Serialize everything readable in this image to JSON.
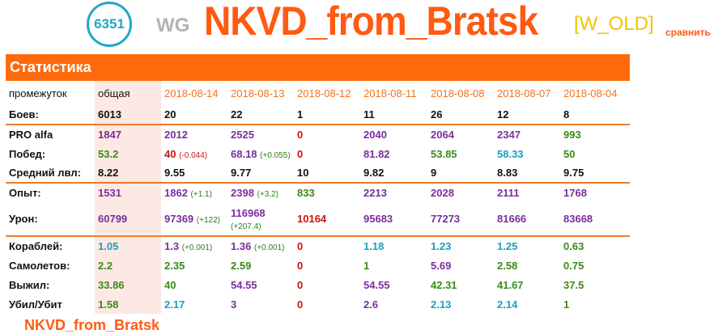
{
  "header": {
    "rating": "6351",
    "clan": "WG",
    "nickname": "NKVD_from_Bratsk",
    "tag": "[W_OLD]",
    "compare": "сравнить"
  },
  "stats": {
    "title": "Статистика",
    "period_label": "промежуток",
    "periods": [
      "общая",
      "2018-08-14",
      "2018-08-13",
      "2018-08-12",
      "2018-08-11",
      "2018-08-08",
      "2018-08-07",
      "2018-08-04"
    ],
    "rows": [
      {
        "label": "Боев:",
        "sep": false,
        "cells": [
          {
            "v": "6013",
            "c": "black"
          },
          {
            "v": "20",
            "c": "black"
          },
          {
            "v": "22",
            "c": "black"
          },
          {
            "v": "1",
            "c": "black"
          },
          {
            "v": "11",
            "c": "black"
          },
          {
            "v": "26",
            "c": "black"
          },
          {
            "v": "12",
            "c": "black"
          },
          {
            "v": "8",
            "c": "black"
          }
        ]
      },
      {
        "label": "PRO alfa",
        "sep": true,
        "cells": [
          {
            "v": "1847",
            "c": "purple"
          },
          {
            "v": "2012",
            "c": "purple"
          },
          {
            "v": "2525",
            "c": "purple"
          },
          {
            "v": "0",
            "c": "red"
          },
          {
            "v": "2040",
            "c": "purple"
          },
          {
            "v": "2064",
            "c": "purple"
          },
          {
            "v": "2347",
            "c": "purple"
          },
          {
            "v": "993",
            "c": "green"
          }
        ]
      },
      {
        "label": "Побед:",
        "sep": false,
        "cells": [
          {
            "v": "53.2",
            "c": "green"
          },
          {
            "v": "40",
            "c": "red",
            "d": "(-0.044)",
            "dc": "red"
          },
          {
            "v": "68.18",
            "c": "purple",
            "d": "(+0.055)",
            "dc": "dgreen"
          },
          {
            "v": "0",
            "c": "red"
          },
          {
            "v": "81.82",
            "c": "purple"
          },
          {
            "v": "53.85",
            "c": "green"
          },
          {
            "v": "58.33",
            "c": "cyan"
          },
          {
            "v": "50",
            "c": "green"
          }
        ]
      },
      {
        "label": "Средний лвл:",
        "sep": false,
        "cells": [
          {
            "v": "8.22",
            "c": "black"
          },
          {
            "v": "9.55",
            "c": "black"
          },
          {
            "v": "9.77",
            "c": "black"
          },
          {
            "v": "10",
            "c": "black"
          },
          {
            "v": "9.82",
            "c": "black"
          },
          {
            "v": "9",
            "c": "black"
          },
          {
            "v": "8.83",
            "c": "black"
          },
          {
            "v": "9.75",
            "c": "black"
          }
        ]
      },
      {
        "label": "Опыт:",
        "sep": true,
        "cells": [
          {
            "v": "1531",
            "c": "purple"
          },
          {
            "v": "1862",
            "c": "purple",
            "d": "(+1.1)",
            "dc": "dgreen"
          },
          {
            "v": "2398",
            "c": "purple",
            "d": "(+3.2)",
            "dc": "dgreen"
          },
          {
            "v": "833",
            "c": "green"
          },
          {
            "v": "2213",
            "c": "purple"
          },
          {
            "v": "2028",
            "c": "purple"
          },
          {
            "v": "2111",
            "c": "purple"
          },
          {
            "v": "1768",
            "c": "purple"
          }
        ]
      },
      {
        "label": "Урон:",
        "sep": false,
        "tall": true,
        "cells": [
          {
            "v": "60799",
            "c": "purple"
          },
          {
            "v": "97369",
            "c": "purple",
            "d": "(+122)",
            "dc": "dgreen"
          },
          {
            "v": "116968",
            "c": "purple",
            "d": "(+207.4)",
            "dc": "dgreen",
            "wrap": true
          },
          {
            "v": "10164",
            "c": "red"
          },
          {
            "v": "95683",
            "c": "purple"
          },
          {
            "v": "77273",
            "c": "purple"
          },
          {
            "v": "81666",
            "c": "purple"
          },
          {
            "v": "83668",
            "c": "purple"
          }
        ]
      },
      {
        "label": "Кораблей:",
        "sep": true,
        "cells": [
          {
            "v": "1.05",
            "c": "cyan"
          },
          {
            "v": "1.3",
            "c": "purple",
            "d": "(+0.001)",
            "dc": "dgreen"
          },
          {
            "v": "1.36",
            "c": "purple",
            "d": "(+0.001)",
            "dc": "dgreen"
          },
          {
            "v": "0",
            "c": "red"
          },
          {
            "v": "1.18",
            "c": "cyan"
          },
          {
            "v": "1.23",
            "c": "cyan"
          },
          {
            "v": "1.25",
            "c": "cyan"
          },
          {
            "v": "0.63",
            "c": "green"
          }
        ]
      },
      {
        "label": "Самолетов:",
        "sep": false,
        "cells": [
          {
            "v": "2.2",
            "c": "green"
          },
          {
            "v": "2.35",
            "c": "green"
          },
          {
            "v": "2.59",
            "c": "green"
          },
          {
            "v": "0",
            "c": "red"
          },
          {
            "v": "1",
            "c": "green"
          },
          {
            "v": "5.69",
            "c": "purple"
          },
          {
            "v": "2.58",
            "c": "green"
          },
          {
            "v": "0.75",
            "c": "green"
          }
        ]
      },
      {
        "label": "Выжил:",
        "sep": false,
        "cells": [
          {
            "v": "33.86",
            "c": "green"
          },
          {
            "v": "40",
            "c": "green"
          },
          {
            "v": "54.55",
            "c": "purple"
          },
          {
            "v": "0",
            "c": "red"
          },
          {
            "v": "54.55",
            "c": "purple"
          },
          {
            "v": "42.31",
            "c": "green"
          },
          {
            "v": "41.67",
            "c": "green"
          },
          {
            "v": "37.5",
            "c": "green"
          }
        ]
      },
      {
        "label": "Убил/Убит",
        "sep": false,
        "cells": [
          {
            "v": "1.58",
            "c": "green"
          },
          {
            "v": "2.17",
            "c": "cyan"
          },
          {
            "v": "3",
            "c": "purple"
          },
          {
            "v": "0",
            "c": "red"
          },
          {
            "v": "2.6",
            "c": "purple"
          },
          {
            "v": "2.13",
            "c": "cyan"
          },
          {
            "v": "2.14",
            "c": "cyan"
          },
          {
            "v": "1",
            "c": "green"
          }
        ]
      }
    ]
  },
  "footer_partial": "NKVD_from_Bratsk"
}
